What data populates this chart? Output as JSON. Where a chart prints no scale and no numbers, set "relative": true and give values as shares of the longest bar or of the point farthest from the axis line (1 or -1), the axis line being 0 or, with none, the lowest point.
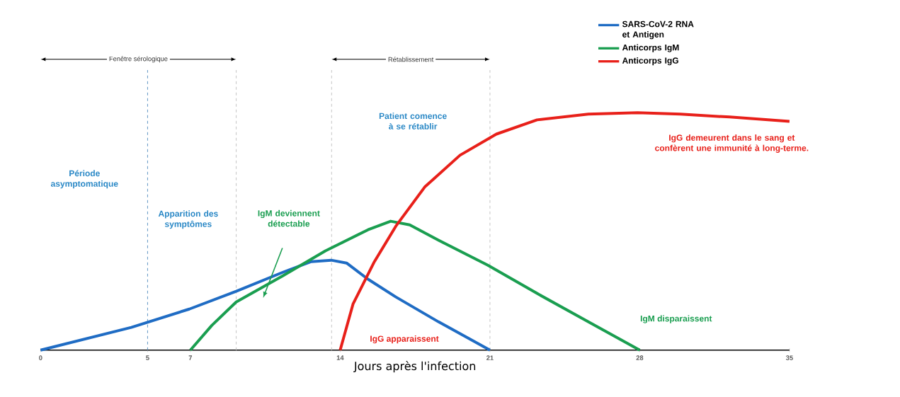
{
  "chart_data": {
    "type": "line",
    "relative": true,
    "xlabel": "Jours après l'infection",
    "xlim": [
      0,
      35
    ],
    "xticks": [
      0,
      5,
      7,
      14,
      21,
      28,
      35
    ],
    "legend": "top right",
    "line_style": "solid",
    "marker": "none",
    "series": [
      {
        "name": "SARS-CoV-2 RNA et Antigen",
        "color": "#1f6cc4",
        "x": [
          0,
          4.24,
          6.95,
          9.14,
          11.32,
          12.65,
          13.58,
          14.3,
          15.3,
          16.6,
          18.6,
          21
        ],
        "values": [
          0,
          0.096,
          0.173,
          0.248,
          0.328,
          0.373,
          0.379,
          0.367,
          0.299,
          0.224,
          0.119,
          0
        ]
      },
      {
        "name": "Anticorps IgM",
        "color": "#1a9e50",
        "x": [
          7,
          8,
          9.14,
          11.32,
          13.31,
          15.3,
          16.36,
          17.25,
          18.6,
          20.9,
          23.2,
          25.6,
          28
        ],
        "values": [
          0,
          0.104,
          0.203,
          0.313,
          0.418,
          0.507,
          0.543,
          0.528,
          0.463,
          0.358,
          0.239,
          0.119,
          0
        ]
      },
      {
        "name": "Anticorps IgG",
        "color": "#e8201a",
        "x": [
          14,
          14.6,
          15.6,
          16.6,
          17.95,
          19.6,
          21.3,
          23.2,
          25.6,
          27.9,
          29.9,
          32.2,
          35
        ],
        "values": [
          0,
          0.194,
          0.373,
          0.522,
          0.687,
          0.821,
          0.91,
          0.97,
          0.994,
          1,
          0.994,
          0.982,
          0.964
        ]
      }
    ],
    "ref_lines": [
      {
        "axis": "x",
        "value": 5,
        "color": "#6a9cc8",
        "line_style": "dashed"
      },
      {
        "axis": "x",
        "value": 9.14,
        "color": "#c8c8c8",
        "line_style": "dashed"
      },
      {
        "axis": "x",
        "value": 13.6,
        "color": "#c8c8c8",
        "line_style": "dashed"
      },
      {
        "axis": "x",
        "value": 21,
        "color": "#c8c8c8",
        "line_style": "dashed"
      }
    ],
    "annotations": [
      "Fenêtre sérologique",
      "Rétablissement",
      "Période asymptomatique",
      "Apparition des symptômes",
      "IgM deviennent détectable",
      "Patient comence à se rétablir",
      "IgG demeurent dans le sang et confèrent une immunité à long-terme.",
      "IgG apparaissent",
      "IgM disparaissent"
    ]
  }
}
